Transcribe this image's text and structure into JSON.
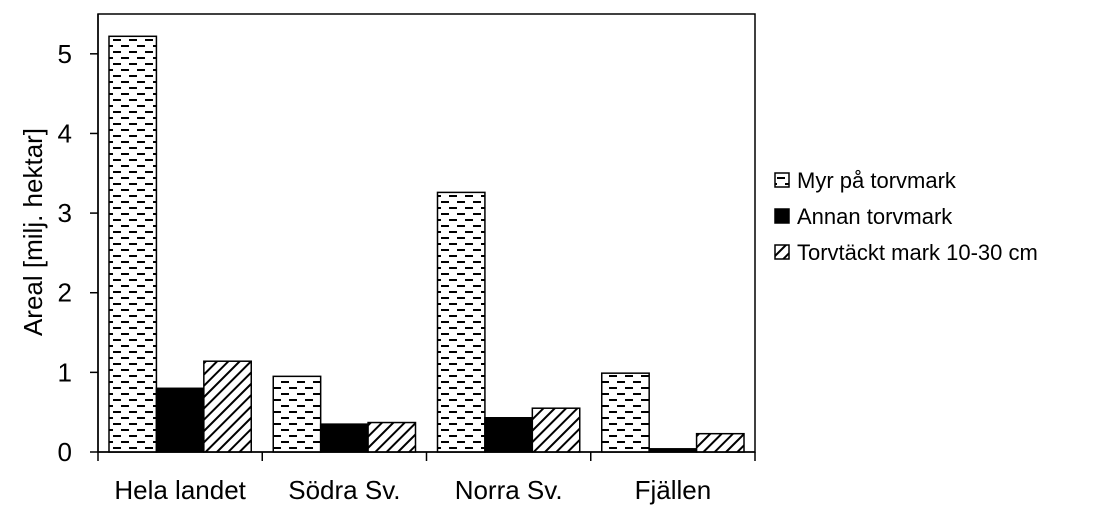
{
  "chart_data": {
    "type": "bar",
    "title": "",
    "xlabel": "",
    "ylabel": "Areal [milj. hektar]",
    "ylim": [
      0,
      5.5
    ],
    "yticks": [
      0,
      1,
      2,
      3,
      4,
      5
    ],
    "grid": false,
    "legend_position": "right",
    "categories": [
      "Hela landet",
      "Södra Sv.",
      "Norra Sv.",
      "Fjällen"
    ],
    "series": [
      {
        "name": "Myr på torvmark",
        "values": [
          5.22,
          0.95,
          3.26,
          0.99
        ],
        "fill": "dashed-pattern",
        "color": "#000000"
      },
      {
        "name": "Annan torvmark",
        "values": [
          0.8,
          0.35,
          0.43,
          0.04
        ],
        "fill": "solid",
        "color": "#000000"
      },
      {
        "name": "Torvtäckt mark 10-30 cm",
        "values": [
          1.14,
          0.37,
          0.55,
          0.23
        ],
        "fill": "diagonal-hatch",
        "color": "#000000"
      }
    ]
  }
}
